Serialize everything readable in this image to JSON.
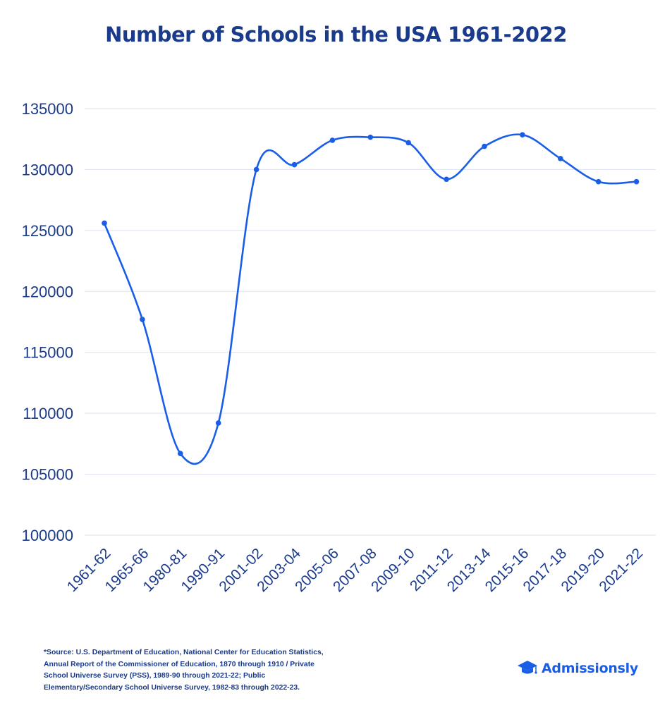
{
  "chart_data": {
    "type": "line",
    "title": "Number of Schools in the USA 1961-2022",
    "xlabel": "",
    "ylabel": "",
    "categories": [
      "1961-62",
      "1965-66",
      "1980-81",
      "1990-91",
      "2001-02",
      "2003-04",
      "2005-06",
      "2007-08",
      "2009-10",
      "2011-12",
      "2013-14",
      "2015-16",
      "2017-18",
      "2019-20",
      "2021-22"
    ],
    "series": [
      {
        "values": [
          125600,
          117700,
          106700,
          109200,
          130000,
          130400,
          132400,
          132650,
          132200,
          129200,
          131900,
          132850,
          130900,
          129000,
          129000
        ]
      }
    ],
    "ylim": [
      100000,
      135000
    ],
    "yticks": [
      "100000",
      "105000",
      "110000",
      "115000",
      "120000",
      "125000",
      "130000",
      "135000"
    ],
    "grid": true,
    "line_color": "#1a5ee8"
  },
  "footer": {
    "source": "*Source:  U.S. Department of Education, National Center for Education Statistics,\nAnnual Report of the Commissioner of Education, 1870 through 1910 /  Private\nSchool Universe Survey (PSS), 1989-90 through 2021-22; Public\nElementary/Secondary School Universe Survey, 1982-83 through 2022-23.",
    "brand": "Admissionsly",
    "brand_icon": "graduation-cap-icon"
  },
  "colors": {
    "title": "#1a3a8c",
    "axis_text": "#1a3a8c",
    "grid": "#dde1f0",
    "brand": "#1a5ee8"
  }
}
